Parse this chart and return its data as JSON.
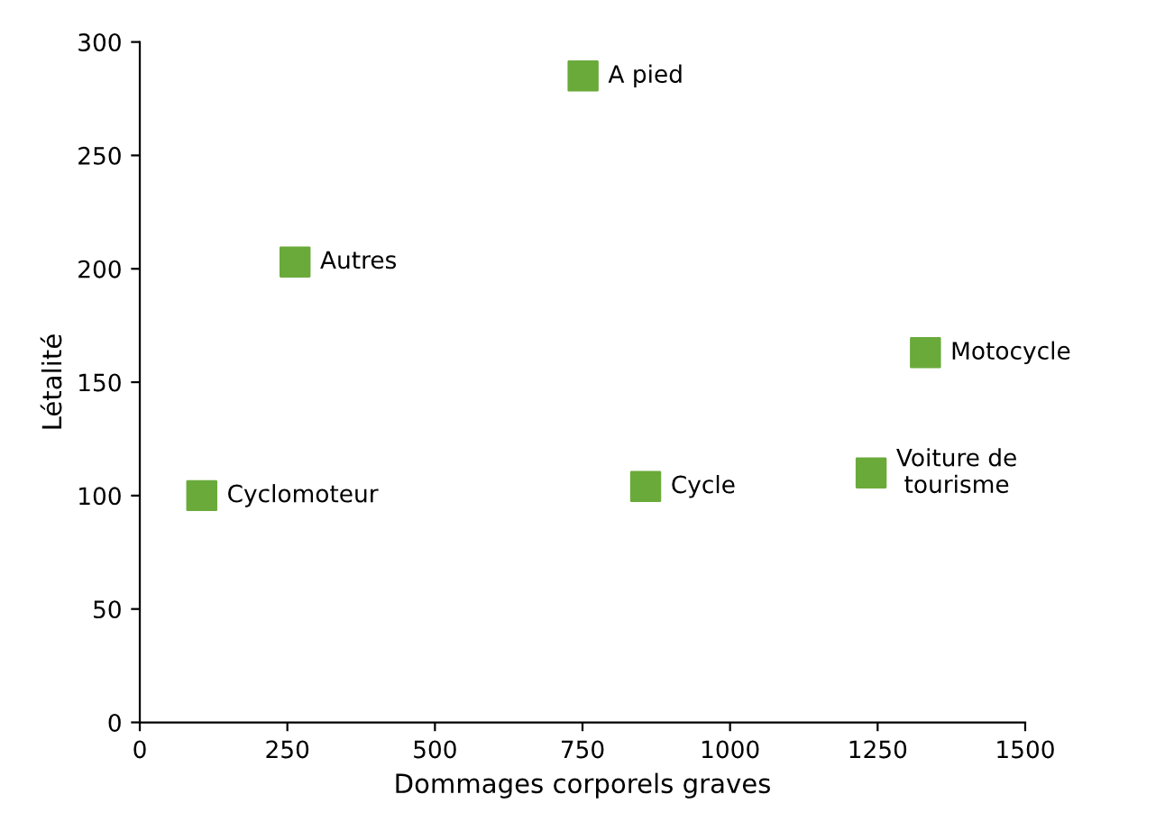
{
  "chart_data": {
    "type": "scatter",
    "xlabel": "Dommages corporels graves",
    "ylabel": "Létalité",
    "x": [
      751,
      263,
      1331,
      1239,
      857,
      105
    ],
    "series": [
      {
        "color": "#6aaa3a",
        "values": [
          285,
          203,
          163,
          110,
          104,
          100
        ]
      }
    ],
    "annotations": [
      {
        "text": "A pied",
        "x": 751,
        "y": 285
      },
      {
        "text": "Autres",
        "x": 263,
        "y": 203
      },
      {
        "text": "Motocycle",
        "x": 1331,
        "y": 163
      },
      {
        "text": "Voiture de\ntourisme",
        "x": 1239,
        "y": 110
      },
      {
        "text": "Cycle",
        "x": 857,
        "y": 104
      },
      {
        "text": "Cyclomoteur",
        "x": 105,
        "y": 100
      }
    ],
    "xlim": [
      0,
      1500
    ],
    "xticks": [
      0,
      250,
      500,
      750,
      1000,
      1250,
      1500
    ],
    "ylim": [
      0,
      300
    ],
    "yticks": [
      0,
      50,
      100,
      150,
      200,
      250,
      300
    ],
    "marker": "square",
    "grid": false,
    "legend": false
  }
}
